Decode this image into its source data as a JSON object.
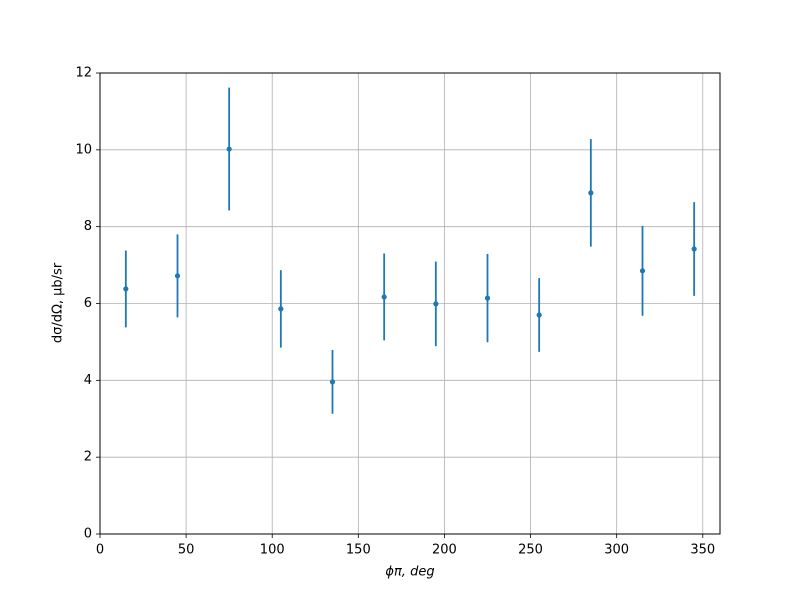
{
  "chart_data": {
    "type": "errorbar",
    "xlabel": "ϕπ, deg",
    "ylabel": "dσ/dΩ, μb/sr",
    "x": [
      15,
      45,
      75,
      105,
      135,
      165,
      195,
      225,
      255,
      285,
      315,
      345
    ],
    "values": [
      6.38,
      6.72,
      10.02,
      5.86,
      3.96,
      6.17,
      5.99,
      6.14,
      5.7,
      8.88,
      6.85,
      7.42
    ],
    "errors": [
      1.0,
      1.08,
      1.6,
      1.01,
      0.83,
      1.13,
      1.1,
      1.15,
      0.96,
      1.4,
      1.17,
      1.22
    ],
    "color": "#1f77b4",
    "xlim": [
      0,
      360
    ],
    "xticks": [
      0,
      50,
      100,
      150,
      200,
      250,
      300,
      350
    ],
    "ylim": [
      0,
      12
    ],
    "yticks": [
      0,
      2,
      4,
      6,
      8,
      10,
      12
    ],
    "grid": true
  }
}
